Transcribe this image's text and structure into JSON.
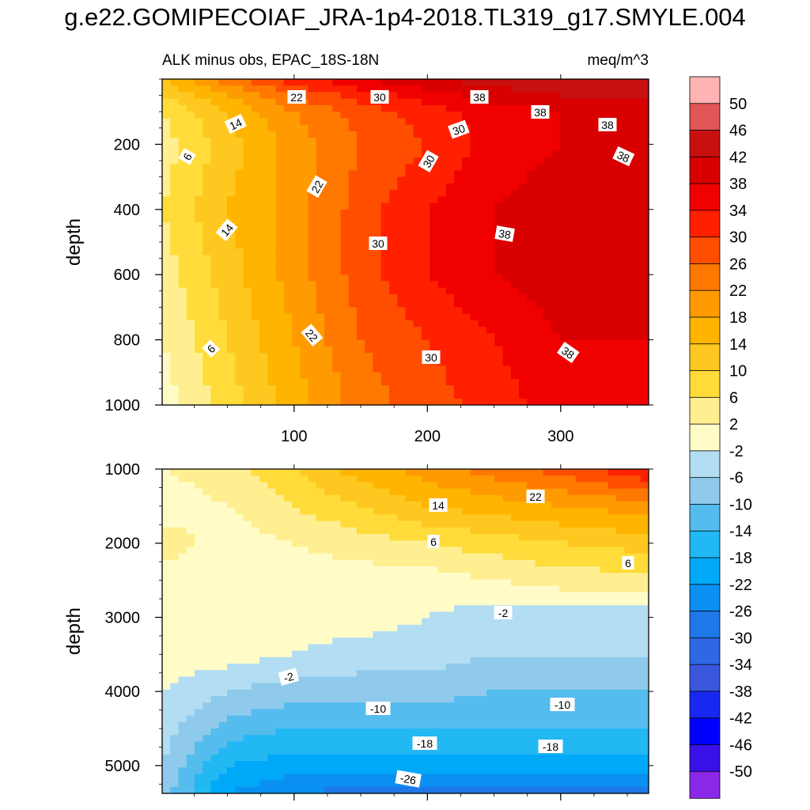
{
  "title": "g.e22.GOMIPECOIAF_JRA-1p4-2018.TL319_g17.SMYLE.004",
  "chart_data": [
    {
      "type": "heatmap",
      "panel": "upper",
      "subtitle_left": "ALK minus obs, EPAC_18S-18N",
      "subtitle_right": "meq/m^3",
      "xlabel": "",
      "ylabel": "depth",
      "x_ticks": [
        100,
        200,
        300
      ],
      "y_ticks": [
        200,
        400,
        600,
        800,
        1000
      ],
      "xlim": [
        1,
        366
      ],
      "ylim": [
        0,
        1000
      ],
      "y_inverted": true,
      "contour_levels": [
        -50,
        -46,
        -42,
        -38,
        -34,
        -30,
        -26,
        -22,
        -18,
        -14,
        -10,
        -6,
        -2,
        2,
        6,
        10,
        14,
        18,
        22,
        26,
        30,
        34,
        38,
        42,
        46,
        50
      ],
      "contour_labels": [
        "22",
        "30",
        "38",
        "38",
        "30",
        "38",
        "14",
        "6",
        "30",
        "38",
        "22",
        "14",
        "30",
        "38",
        "22",
        "30",
        "6",
        "38"
      ],
      "value_field": {
        "x": [
          1,
          50,
          100,
          150,
          200,
          250,
          300,
          366
        ],
        "depth": [
          0,
          50,
          100,
          200,
          400,
          600,
          800,
          1000
        ],
        "values": [
          [
            14,
            24,
            32,
            38,
            42,
            44,
            46,
            46
          ],
          [
            10,
            18,
            26,
            32,
            36,
            40,
            42,
            42
          ],
          [
            6,
            14,
            22,
            28,
            32,
            36,
            38,
            40
          ],
          [
            4,
            12,
            20,
            26,
            30,
            36,
            38,
            40
          ],
          [
            6,
            14,
            20,
            28,
            34,
            38,
            40,
            42
          ],
          [
            4,
            12,
            20,
            28,
            34,
            38,
            40,
            40
          ],
          [
            2,
            10,
            18,
            26,
            30,
            34,
            38,
            38
          ],
          [
            0,
            8,
            16,
            24,
            28,
            32,
            36,
            38
          ]
        ]
      }
    },
    {
      "type": "heatmap",
      "panel": "lower",
      "xlabel": "",
      "ylabel": "depth",
      "y_ticks": [
        1000,
        2000,
        3000,
        4000,
        5000
      ],
      "xlim": [
        1,
        366
      ],
      "ylim": [
        1000,
        5375
      ],
      "y_inverted": true,
      "contour_labels": [
        "14",
        "22",
        "6",
        "6",
        "-2",
        "-2",
        "-10",
        "-10",
        "-18",
        "-18",
        "-26"
      ],
      "value_field": {
        "x": [
          1,
          50,
          100,
          150,
          200,
          250,
          300,
          366
        ],
        "depth": [
          1000,
          1500,
          2000,
          2500,
          3000,
          3500,
          4000,
          4500,
          5000,
          5375
        ],
        "values": [
          [
            2,
            4,
            10,
            16,
            20,
            24,
            28,
            34
          ],
          [
            0,
            2,
            6,
            10,
            14,
            16,
            18,
            20
          ],
          [
            4,
            0,
            2,
            4,
            6,
            8,
            10,
            12
          ],
          [
            0,
            0,
            0,
            0,
            0,
            2,
            4,
            4
          ],
          [
            0,
            0,
            0,
            0,
            -2,
            -4,
            -4,
            -4
          ],
          [
            0,
            0,
            -2,
            -4,
            -4,
            -6,
            -6,
            -6
          ],
          [
            -2,
            -6,
            -8,
            -8,
            -8,
            -10,
            -10,
            -10
          ],
          [
            -4,
            -12,
            -14,
            -14,
            -14,
            -14,
            -14,
            -14
          ],
          [
            -6,
            -18,
            -20,
            -20,
            -20,
            -20,
            -20,
            -20
          ],
          [
            -8,
            -22,
            -26,
            -28,
            -28,
            -28,
            -28,
            -28
          ]
        ]
      }
    }
  ],
  "colorbar": {
    "labels": [
      "50",
      "46",
      "42",
      "38",
      "34",
      "30",
      "26",
      "22",
      "18",
      "14",
      "10",
      "6",
      "2",
      "-2",
      "-6",
      "-10",
      "-14",
      "-18",
      "-22",
      "-26",
      "-30",
      "-34",
      "-38",
      "-42",
      "-46",
      "-50"
    ],
    "colors": [
      "#FFB3B3",
      "#E05555",
      "#C81010",
      "#D80000",
      "#F10000",
      "#FF2000",
      "#FF4E00",
      "#FF7800",
      "#FF9B00",
      "#FFB400",
      "#FFC820",
      "#FFDC3A",
      "#FFEF90",
      "#FFFCC8",
      "#B3DDF2",
      "#8FCAEC",
      "#55BCEE",
      "#22B8F4",
      "#00A8F8",
      "#0A90F0",
      "#1E78E8",
      "#2E68E4",
      "#3A57DC",
      "#1828F0",
      "#0000FF",
      "#3A10E8",
      "#8A28E8"
    ]
  }
}
